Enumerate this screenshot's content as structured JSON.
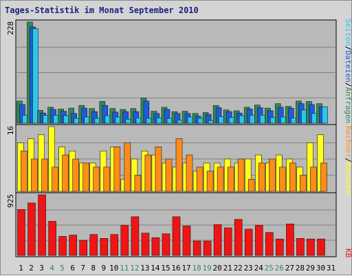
{
  "title": "Tages-Statistik im Monat September 2010",
  "colors": {
    "anfragen": "#2e8b57",
    "dateien": "#1e5bd8",
    "seiten": "#28c8f0",
    "besuche": "#ffff1a",
    "rechner": "#ff8c1a",
    "kb": "#f01414",
    "weekend_label": "#2e8b57",
    "panel_bg": "#b9b9b9",
    "grid": "#808080"
  },
  "chart_data": [
    {
      "type": "bar",
      "panel": "anfragen-dateien-seiten",
      "ymax_label": "228",
      "ylim": [
        0,
        228
      ],
      "side_labels": [
        "Anfragen",
        "/",
        "Dateien",
        "/",
        "Seiten"
      ],
      "categories": [
        "1",
        "2",
        "3",
        "4",
        "5",
        "6",
        "7",
        "8",
        "9",
        "10",
        "11",
        "12",
        "13",
        "14",
        "15",
        "16",
        "17",
        "18",
        "19",
        "20",
        "21",
        "22",
        "23",
        "24",
        "25",
        "26",
        "27",
        "28",
        "29",
        "30",
        "31"
      ],
      "series": [
        {
          "name": "Anfragen",
          "values": [
            50,
            228,
            29,
            36,
            32,
            34,
            40,
            33,
            49,
            33,
            31,
            33,
            57,
            27,
            36,
            26,
            27,
            22,
            24,
            40,
            30,
            28,
            36,
            41,
            34,
            44,
            38,
            50,
            49,
            44,
            0
          ]
        },
        {
          "name": "Dateien",
          "values": [
            42,
            217,
            23,
            31,
            27,
            22,
            34,
            26,
            40,
            25,
            26,
            26,
            50,
            22,
            31,
            22,
            22,
            16,
            20,
            35,
            26,
            23,
            32,
            35,
            28,
            36,
            34,
            44,
            42,
            37,
            0
          ]
        },
        {
          "name": "Seiten",
          "values": [
            18,
            213,
            18,
            18,
            17,
            11,
            14,
            11,
            17,
            14,
            9,
            12,
            11,
            12,
            11,
            7,
            14,
            11,
            6,
            15,
            13,
            17,
            18,
            18,
            13,
            14,
            12,
            30,
            22,
            37,
            0
          ]
        }
      ]
    },
    {
      "type": "bar",
      "panel": "besuche-rechner",
      "ymax_label": "16",
      "ylim": [
        0,
        16
      ],
      "side_labels": [
        "Besuche",
        "/",
        "Rechner"
      ],
      "categories": [
        "1",
        "2",
        "3",
        "4",
        "5",
        "6",
        "7",
        "8",
        "9",
        "10",
        "11",
        "12",
        "13",
        "14",
        "15",
        "16",
        "17",
        "18",
        "19",
        "20",
        "21",
        "22",
        "23",
        "24",
        "25",
        "26",
        "27",
        "28",
        "29",
        "30",
        "31"
      ],
      "series": [
        {
          "name": "Besuche",
          "values": [
            12,
            13,
            14,
            16,
            11,
            10,
            7,
            7,
            10,
            11,
            3,
            8,
            10,
            9,
            7,
            6,
            7,
            5,
            7,
            7,
            8,
            7,
            8,
            9,
            7,
            9,
            8,
            6,
            12,
            14,
            0
          ]
        },
        {
          "name": "Rechner",
          "values": [
            10,
            8,
            8,
            6,
            9,
            8,
            7,
            6,
            6,
            11,
            12,
            4,
            9,
            11,
            8,
            13,
            9,
            6,
            5,
            6,
            6,
            8,
            3,
            7,
            8,
            6,
            7,
            4,
            6,
            7,
            0
          ]
        }
      ]
    },
    {
      "type": "bar",
      "panel": "kb",
      "ymax_label": "925",
      "ylim": [
        0,
        925
      ],
      "side_labels": [
        "KB"
      ],
      "categories": [
        "1",
        "2",
        "3",
        "4",
        "5",
        "6",
        "7",
        "8",
        "9",
        "10",
        "11",
        "12",
        "13",
        "14",
        "15",
        "16",
        "17",
        "18",
        "19",
        "20",
        "21",
        "22",
        "23",
        "24",
        "25",
        "26",
        "27",
        "28",
        "29",
        "30",
        "31"
      ],
      "series": [
        {
          "name": "KB",
          "values": [
            700,
            800,
            925,
            520,
            290,
            310,
            230,
            320,
            260,
            320,
            460,
            590,
            340,
            270,
            330,
            590,
            450,
            220,
            220,
            470,
            420,
            550,
            400,
            460,
            350,
            250,
            480,
            260,
            250,
            250,
            0
          ]
        }
      ]
    }
  ],
  "x_labels": [
    {
      "text": "1",
      "weekend": false
    },
    {
      "text": "2",
      "weekend": false
    },
    {
      "text": "3",
      "weekend": false
    },
    {
      "text": "4",
      "weekend": true
    },
    {
      "text": "5",
      "weekend": true
    },
    {
      "text": "6",
      "weekend": false
    },
    {
      "text": "7",
      "weekend": false
    },
    {
      "text": "8",
      "weekend": false
    },
    {
      "text": "9",
      "weekend": false
    },
    {
      "text": "10",
      "weekend": false
    },
    {
      "text": "11",
      "weekend": true
    },
    {
      "text": "12",
      "weekend": true
    },
    {
      "text": "13",
      "weekend": false
    },
    {
      "text": "14",
      "weekend": false
    },
    {
      "text": "15",
      "weekend": false
    },
    {
      "text": "16",
      "weekend": false
    },
    {
      "text": "17",
      "weekend": false
    },
    {
      "text": "18",
      "weekend": true
    },
    {
      "text": "19",
      "weekend": true
    },
    {
      "text": "20",
      "weekend": false
    },
    {
      "text": "21",
      "weekend": false
    },
    {
      "text": "22",
      "weekend": false
    },
    {
      "text": "23",
      "weekend": false
    },
    {
      "text": "24",
      "weekend": false
    },
    {
      "text": "25",
      "weekend": true
    },
    {
      "text": "26",
      "weekend": true
    },
    {
      "text": "27",
      "weekend": false
    },
    {
      "text": "28",
      "weekend": false
    },
    {
      "text": "29",
      "weekend": false
    },
    {
      "text": "30",
      "weekend": false
    },
    {
      "text": "31",
      "weekend": false
    }
  ]
}
